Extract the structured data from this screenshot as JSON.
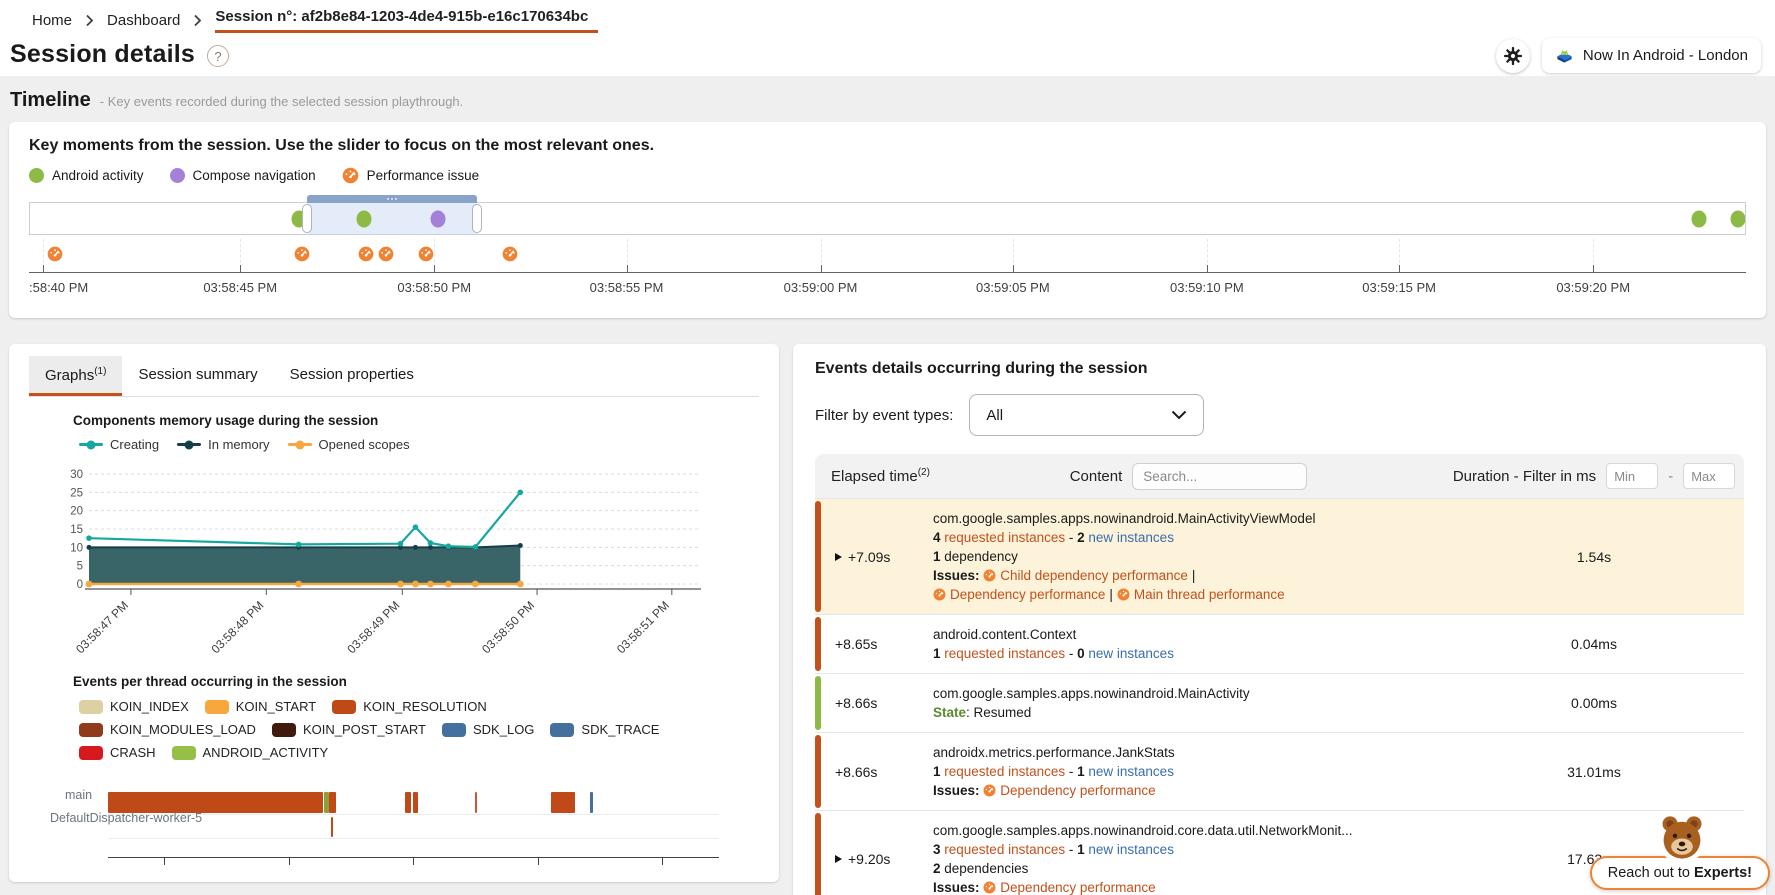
{
  "breadcrumb": {
    "items": [
      {
        "label": "Home"
      },
      {
        "label": "Dashboard"
      },
      {
        "label": "Session n°: af2b8e84-1203-4de4-915b-e16c170634bc",
        "active": true
      }
    ]
  },
  "header": {
    "title": "Session details",
    "help_glyph": "?",
    "project": "Now In Android - London"
  },
  "timeline": {
    "section_title": "Timeline",
    "section_subtitle": "- Key events recorded during the selected session playthrough.",
    "card_title": "Key moments from the session. Use the slider to focus on the most relevant ones.",
    "legend": [
      {
        "label": "Android activity",
        "type": "dot",
        "color": "#8cba44"
      },
      {
        "label": "Compose navigation",
        "type": "dot",
        "color": "#a580d8"
      },
      {
        "label": "Performance issue",
        "type": "gauge",
        "color": "#f08232"
      }
    ],
    "selection": {
      "start_pct": 16.2,
      "end_pct": 26.1
    },
    "events": [
      {
        "name": "android-activity-dot",
        "pos_pct": 15.7,
        "color": "#8cba44"
      },
      {
        "name": "android-activity-dot",
        "pos_pct": 19.5,
        "color": "#8cba44"
      },
      {
        "name": "compose-navigation-dot",
        "pos_pct": 23.8,
        "color": "#a580d8"
      },
      {
        "name": "android-activity-dot",
        "pos_pct": 97.3,
        "color": "#8cba44"
      },
      {
        "name": "android-activity-dot",
        "pos_pct": 99.6,
        "color": "#8cba44"
      }
    ],
    "perf_markers_pct": [
      1.5,
      15.9,
      19.6,
      20.8,
      23.1,
      28.0
    ],
    "axis": [
      {
        "pos_pct": 0.8,
        "label": ":58:40 PM"
      },
      {
        "pos_pct": 12.3,
        "label": "03:58:45 PM"
      },
      {
        "pos_pct": 23.6,
        "label": "03:58:50 PM"
      },
      {
        "pos_pct": 34.8,
        "label": "03:58:55 PM"
      },
      {
        "pos_pct": 46.1,
        "label": "03:59:00 PM"
      },
      {
        "pos_pct": 57.3,
        "label": "03:59:05 PM"
      },
      {
        "pos_pct": 68.6,
        "label": "03:59:10 PM"
      },
      {
        "pos_pct": 79.8,
        "label": "03:59:15 PM"
      },
      {
        "pos_pct": 91.1,
        "label": "03:59:20 PM"
      }
    ]
  },
  "left_panel": {
    "tabs": [
      {
        "label": "Graphs",
        "sup": "(1)",
        "active": true
      },
      {
        "label": "Session summary"
      },
      {
        "label": "Session properties"
      }
    ]
  },
  "chart_data": [
    {
      "type": "line",
      "title": "Components memory usage during the session",
      "ylim": [
        0,
        30
      ],
      "yticks": [
        30,
        25,
        20,
        15,
        10,
        5,
        0
      ],
      "xticks": [
        {
          "pos": 0.07,
          "label": "03:58:47 PM"
        },
        {
          "pos": 0.296,
          "label": "03:58:48 PM"
        },
        {
          "pos": 0.523,
          "label": "03:58:49 PM"
        },
        {
          "pos": 0.748,
          "label": "03:58:50 PM"
        },
        {
          "pos": 0.973,
          "label": "03:58:51 PM"
        }
      ],
      "series": [
        {
          "name": "Creating",
          "color": "#16a8a0",
          "points": [
            [
              0,
              12.5
            ],
            [
              0.35,
              10.8
            ],
            [
              0.52,
              11
            ],
            [
              0.545,
              15.5
            ],
            [
              0.57,
              11.2
            ],
            [
              0.6,
              10.3
            ],
            [
              0.645,
              10.1
            ],
            [
              0.72,
              25
            ]
          ]
        },
        {
          "name": "In memory",
          "color": "#143f48",
          "fill": "#2e5c60",
          "points": [
            [
              0,
              10
            ],
            [
              0.35,
              10
            ],
            [
              0.52,
              10
            ],
            [
              0.545,
              10
            ],
            [
              0.57,
              10
            ],
            [
              0.6,
              10
            ],
            [
              0.645,
              10
            ],
            [
              0.72,
              10.5
            ]
          ]
        },
        {
          "name": "Opened scopes",
          "color": "#f5a83f",
          "points": [
            [
              0,
              0
            ],
            [
              0.35,
              0
            ],
            [
              0.52,
              0
            ],
            [
              0.545,
              0
            ],
            [
              0.57,
              0
            ],
            [
              0.6,
              0
            ],
            [
              0.645,
              0
            ],
            [
              0.72,
              0
            ]
          ]
        }
      ]
    },
    {
      "type": "timeline_bars",
      "title": "Events per thread occurring in the session",
      "legend": [
        {
          "label": "KOIN_INDEX",
          "color": "#ddd1a3"
        },
        {
          "label": "KOIN_START",
          "color": "#f6a83c"
        },
        {
          "label": "KOIN_RESOLUTION",
          "color": "#bf4a17"
        },
        {
          "label": "KOIN_MODULES_LOAD",
          "color": "#8f3c1c"
        },
        {
          "label": "KOIN_POST_START",
          "color": "#3f1a0d"
        },
        {
          "label": "SDK_LOG",
          "color": "#44709d"
        },
        {
          "label": "SDK_TRACE",
          "color": "#44709d"
        },
        {
          "label": "CRASH",
          "color": "#d7191f"
        },
        {
          "label": "ANDROID_ACTIVITY",
          "color": "#96bf48"
        }
      ],
      "threads": [
        "main",
        "DefaultDispatcher-worker-5"
      ],
      "xtick_positions_pct": [
        9.2,
        29.6,
        49.9,
        70.4,
        90.7
      ],
      "bars": [
        {
          "row": 0,
          "start": 0,
          "end": 35.2,
          "color": "#bf4a17"
        },
        {
          "row": 0,
          "start": 35.4,
          "end": 36.1,
          "color": "#8f9f3d"
        },
        {
          "row": 0,
          "start": 36.2,
          "end": 37.3,
          "color": "#bf4a17"
        },
        {
          "row": 0,
          "start": 48.6,
          "end": 49.6,
          "color": "#bf4a17"
        },
        {
          "row": 0,
          "start": 49.9,
          "end": 50.8,
          "color": "#bf4a17"
        },
        {
          "row": 0,
          "start": 60.0,
          "end": 60.4,
          "color": "#c85a33"
        },
        {
          "row": 0,
          "start": 72.5,
          "end": 76.4,
          "color": "#bf4a17"
        },
        {
          "row": 0,
          "start": 78.9,
          "end": 79.3,
          "color": "#44709d"
        },
        {
          "row": 1,
          "start": 36.5,
          "end": 36.9,
          "color": "#bf4a17"
        }
      ]
    }
  ],
  "right_panel": {
    "title": "Events details occurring during the session",
    "filter_label": "Filter by event types:",
    "filter_value": "All",
    "table": {
      "col_elapsed": "Elapsed time",
      "elapsed_sup": "(2)",
      "col_content": "Content",
      "search_placeholder": "Search...",
      "col_duration": "Duration - Filter in ms",
      "min_placeholder": "Min",
      "max_placeholder": "Max",
      "min_max_separator": "-",
      "issues_label": "Issues:",
      "issues_separator": "|",
      "instances_separator": "-",
      "rows": [
        {
          "accent": "#c3511c",
          "background": "#fdf3da",
          "expandable": true,
          "elapsed": "+7.09s",
          "duration": "1.54s",
          "title": "com.google.samples.apps.nowinandroid.MainActivityViewModel",
          "requested_count": "4",
          "requested_label": "requested instances",
          "new_count": "2",
          "new_label": "new instances",
          "dependencies_count": "1",
          "dependencies_label": "dependency",
          "issues": [
            "Child dependency performance",
            "Dependency performance",
            "Main thread performance"
          ],
          "issues_break_after": 0
        },
        {
          "accent": "#c3511c",
          "elapsed": "+8.65s",
          "duration": "0.04ms",
          "title": "android.content.Context",
          "requested_count": "1",
          "requested_label": "requested instances",
          "new_count": "0",
          "new_label": "new instances"
        },
        {
          "accent": "#8cba44",
          "elapsed": "+8.66s",
          "duration": "0.00ms",
          "title": "com.google.samples.apps.nowinandroid.MainActivity",
          "state_label": "State",
          "state_value": "Resumed"
        },
        {
          "accent": "#c3511c",
          "elapsed": "+8.66s",
          "duration": "31.01ms",
          "title": "androidx.metrics.performance.JankStats",
          "requested_count": "1",
          "requested_label": "requested instances",
          "new_count": "1",
          "new_label": "new instances",
          "issues": [
            "Dependency performance"
          ]
        },
        {
          "accent": "#c3511c",
          "expandable": true,
          "elapsed": "+9.20s",
          "duration": "17.63ms",
          "title": "com.google.samples.apps.nowinandroid.core.data.util.NetworkMonit...",
          "requested_count": "3",
          "requested_label": "requested instances",
          "new_count": "1",
          "new_label": "new instances",
          "dependencies_count": "2",
          "dependencies_label": "dependencies",
          "issues": [
            "Dependency performance"
          ]
        }
      ]
    }
  },
  "fab": {
    "text_prefix": "Reach out to ",
    "text_bold": "Experts!"
  }
}
